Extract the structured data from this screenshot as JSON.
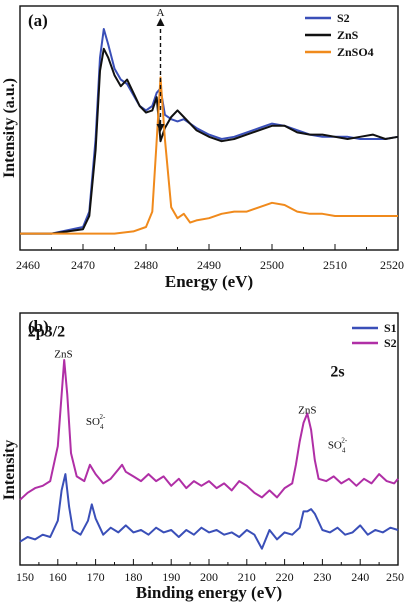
{
  "chart_data": [
    {
      "panel": "(a)",
      "type": "line",
      "xlabel": "Energy (eV)",
      "ylabel": "Intensity (a.u.)",
      "xlim": [
        2460,
        2520
      ],
      "xticks": [
        2460,
        2470,
        2480,
        2490,
        2500,
        2510,
        2520
      ],
      "y_ticks_shown": false,
      "legend_position": "top-right",
      "annotation": {
        "label": "A",
        "x": 2482.3,
        "style": "dashed vertical line with arrow"
      },
      "series": [
        {
          "name": "S2",
          "color": "#3a4fb8",
          "x": [
            2460,
            2465,
            2470,
            2471,
            2472,
            2472.7,
            2473.3,
            2474,
            2475,
            2476,
            2477,
            2478,
            2479,
            2480,
            2481,
            2481.7,
            2482.3,
            2483,
            2484,
            2485,
            2486,
            2488,
            2490,
            2492,
            2494,
            2496,
            2498,
            2500,
            2502,
            2504,
            2506,
            2508,
            2510,
            2512,
            2514,
            2516,
            2518,
            2520
          ],
          "y": [
            0.02,
            0.02,
            0.05,
            0.12,
            0.45,
            0.82,
            0.95,
            0.88,
            0.77,
            0.72,
            0.7,
            0.65,
            0.6,
            0.58,
            0.6,
            0.66,
            0.68,
            0.56,
            0.54,
            0.53,
            0.54,
            0.5,
            0.47,
            0.45,
            0.46,
            0.48,
            0.5,
            0.52,
            0.51,
            0.49,
            0.47,
            0.46,
            0.46,
            0.46,
            0.45,
            0.45,
            0.45,
            0.46
          ]
        },
        {
          "name": "ZnS",
          "color": "#111111",
          "x": [
            2460,
            2465,
            2470,
            2471,
            2472,
            2472.7,
            2473.3,
            2474,
            2475,
            2476,
            2477,
            2478,
            2479,
            2480,
            2481,
            2481.7,
            2482.3,
            2483,
            2484,
            2485,
            2486,
            2488,
            2490,
            2492,
            2494,
            2496,
            2498,
            2500,
            2502,
            2504,
            2506,
            2508,
            2510,
            2512,
            2514,
            2516,
            2518,
            2520
          ],
          "y": [
            0.02,
            0.02,
            0.04,
            0.1,
            0.4,
            0.76,
            0.86,
            0.82,
            0.74,
            0.69,
            0.72,
            0.66,
            0.6,
            0.57,
            0.58,
            0.64,
            0.44,
            0.5,
            0.55,
            0.58,
            0.55,
            0.49,
            0.46,
            0.44,
            0.45,
            0.47,
            0.49,
            0.51,
            0.51,
            0.48,
            0.47,
            0.47,
            0.46,
            0.45,
            0.46,
            0.47,
            0.45,
            0.46
          ]
        },
        {
          "name": "ZnSO4",
          "color": "#f08a1c",
          "x": [
            2460,
            2465,
            2470,
            2475,
            2478,
            2480,
            2481,
            2481.6,
            2482.3,
            2483,
            2484,
            2485,
            2486,
            2487,
            2488,
            2490,
            2492,
            2494,
            2496,
            2498,
            2500,
            2502,
            2504,
            2506,
            2508,
            2510,
            2512,
            2514,
            2516,
            2518,
            2520
          ],
          "y": [
            0.02,
            0.02,
            0.02,
            0.02,
            0.03,
            0.05,
            0.12,
            0.4,
            0.73,
            0.45,
            0.14,
            0.09,
            0.11,
            0.07,
            0.08,
            0.09,
            0.11,
            0.12,
            0.12,
            0.14,
            0.16,
            0.15,
            0.12,
            0.11,
            0.11,
            0.1,
            0.1,
            0.1,
            0.1,
            0.1,
            0.1
          ]
        }
      ]
    },
    {
      "panel": "(b)",
      "type": "line",
      "xlabel": "Binding energy (eV)",
      "ylabel": "Intensity",
      "xlim": [
        150,
        250
      ],
      "xticks": [
        150,
        160,
        170,
        180,
        190,
        200,
        210,
        220,
        230,
        240,
        250
      ],
      "y_ticks_shown": false,
      "legend_position": "top-right",
      "annotations": [
        {
          "text": "2p3/2",
          "kind": "region",
          "x": 157,
          "y": 0.95
        },
        {
          "text": "2s",
          "kind": "region",
          "x": 234,
          "y": 0.78
        },
        {
          "text": "ZnS",
          "kind": "peak",
          "x": 161.5,
          "y": 0.86
        },
        {
          "text": "SO",
          "sub": "4",
          "sup": "2-",
          "kind": "peak",
          "x": 170,
          "y": 0.57
        },
        {
          "text": "ZnS",
          "kind": "peak",
          "x": 226,
          "y": 0.62
        },
        {
          "text": "SO",
          "sub": "4",
          "sup": "2-",
          "kind": "peak",
          "x": 234,
          "y": 0.47
        }
      ],
      "series": [
        {
          "name": "S1",
          "color": "#3a4fb8",
          "x": [
            150,
            152,
            154,
            156,
            158,
            160,
            161,
            162,
            163,
            164,
            166,
            168,
            169,
            170,
            172,
            174,
            176,
            178,
            180,
            182,
            184,
            186,
            188,
            190,
            192,
            194,
            196,
            198,
            200,
            202,
            204,
            206,
            208,
            210,
            212,
            214,
            216,
            218,
            220,
            222,
            224,
            225,
            226,
            227,
            228,
            230,
            232,
            234,
            236,
            238,
            240,
            242,
            244,
            246,
            248,
            250
          ],
          "y": [
            0.07,
            0.09,
            0.08,
            0.1,
            0.09,
            0.16,
            0.29,
            0.36,
            0.22,
            0.12,
            0.1,
            0.16,
            0.23,
            0.17,
            0.1,
            0.13,
            0.11,
            0.14,
            0.11,
            0.12,
            0.1,
            0.13,
            0.11,
            0.12,
            0.09,
            0.12,
            0.1,
            0.13,
            0.11,
            0.12,
            0.1,
            0.11,
            0.09,
            0.12,
            0.1,
            0.04,
            0.12,
            0.08,
            0.11,
            0.1,
            0.13,
            0.2,
            0.2,
            0.21,
            0.19,
            0.12,
            0.11,
            0.13,
            0.1,
            0.11,
            0.14,
            0.1,
            0.12,
            0.11,
            0.13,
            0.12
          ]
        },
        {
          "name": "S2",
          "color": "#b02fa6",
          "x": [
            150,
            152,
            154,
            156,
            158,
            160,
            161,
            161.7,
            162.5,
            163.5,
            165,
            167,
            168.5,
            170,
            172,
            174,
            176,
            177,
            178,
            180,
            182,
            184,
            186,
            188,
            190,
            192,
            194,
            196,
            198,
            200,
            202,
            204,
            206,
            208,
            210,
            212,
            214,
            216,
            218,
            220,
            222,
            223,
            224,
            225,
            226,
            227,
            228,
            229,
            231,
            233,
            235,
            237,
            239,
            241,
            243,
            245,
            247,
            249,
            250
          ],
          "y": [
            0.25,
            0.28,
            0.3,
            0.31,
            0.33,
            0.48,
            0.7,
            0.85,
            0.7,
            0.45,
            0.35,
            0.33,
            0.4,
            0.36,
            0.32,
            0.34,
            0.38,
            0.4,
            0.37,
            0.35,
            0.33,
            0.36,
            0.33,
            0.35,
            0.31,
            0.34,
            0.3,
            0.33,
            0.31,
            0.33,
            0.3,
            0.32,
            0.29,
            0.33,
            0.31,
            0.28,
            0.26,
            0.29,
            0.26,
            0.3,
            0.32,
            0.4,
            0.5,
            0.58,
            0.62,
            0.55,
            0.42,
            0.34,
            0.33,
            0.35,
            0.32,
            0.34,
            0.31,
            0.34,
            0.32,
            0.36,
            0.33,
            0.32,
            0.34
          ]
        }
      ]
    }
  ]
}
